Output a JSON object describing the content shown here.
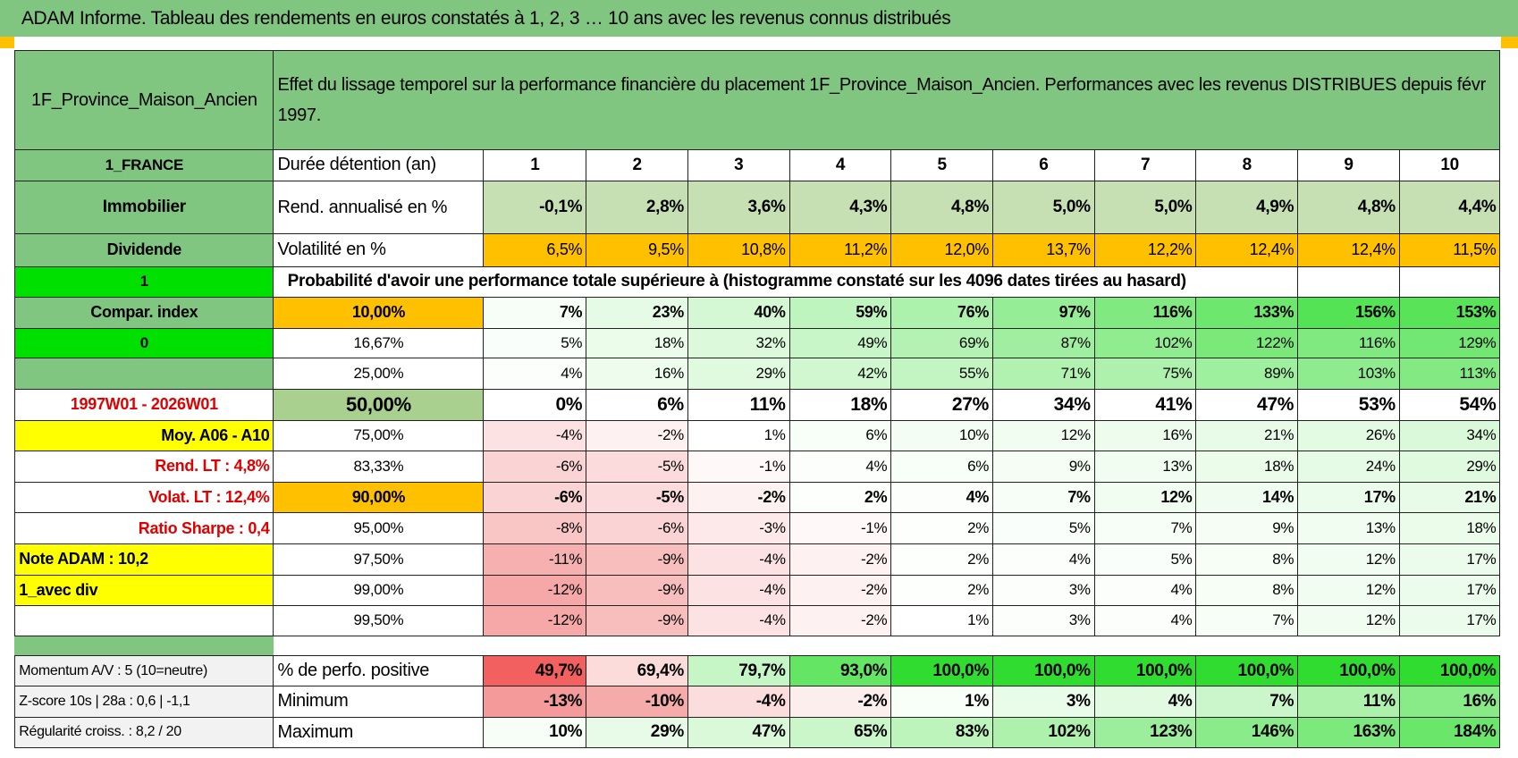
{
  "header": {
    "title": "ADAM Informe. Tableau des rendements en euros constatés à 1, 2, 3 … 10 ans avec les revenus connus distribués"
  },
  "table": {
    "name": "1F_Province_Maison_Ancien",
    "description": "Effet du lissage temporel sur la performance financière du placement 1F_Province_Maison_Ancien. Performances avec les revenus DISTRIBUES depuis févr 1997.",
    "rows": [
      {
        "left": "1_FRANCE",
        "label": "Durée détention (an)",
        "cells": [
          "1",
          "2",
          "3",
          "4",
          "5",
          "6",
          "7",
          "8",
          "9",
          "10"
        ]
      },
      {
        "left": "Immobilier",
        "label": "Rend. annualisé en %",
        "cells": [
          "-0,1%",
          "2,8%",
          "3,6%",
          "4,3%",
          "4,8%",
          "5,0%",
          "5,0%",
          "4,9%",
          "4,8%",
          "4,4%"
        ]
      },
      {
        "left": "Dividende",
        "label": "Volatilité en %",
        "cells": [
          "6,5%",
          "9,5%",
          "10,8%",
          "11,2%",
          "12,0%",
          "13,7%",
          "12,2%",
          "12,4%",
          "12,4%",
          "11,5%"
        ]
      },
      {
        "left": "1",
        "label": "Probabilité d'avoir une performance totale supérieure à (histogramme constaté sur les 4096 dates tirées au hasard)"
      },
      {
        "left": "Compar. index",
        "label": "10,00%",
        "cells": [
          "7%",
          "23%",
          "40%",
          "59%",
          "76%",
          "97%",
          "116%",
          "133%",
          "156%",
          "153%"
        ]
      },
      {
        "left": "0",
        "label": "16,67%",
        "cells": [
          "5%",
          "18%",
          "32%",
          "49%",
          "69%",
          "87%",
          "102%",
          "122%",
          "116%",
          "129%"
        ]
      },
      {
        "label": "25,00%",
        "cells": [
          "4%",
          "16%",
          "29%",
          "42%",
          "55%",
          "71%",
          "75%",
          "89%",
          "103%",
          "113%"
        ]
      },
      {
        "left": "1997W01 - 2026W01",
        "label": "50,00%",
        "cells": [
          "0%",
          "6%",
          "11%",
          "18%",
          "27%",
          "34%",
          "41%",
          "47%",
          "53%",
          "54%"
        ]
      },
      {
        "left": "Moy. A06 - A10",
        "label": "75,00%",
        "cells": [
          "-4%",
          "-2%",
          "1%",
          "6%",
          "10%",
          "12%",
          "16%",
          "21%",
          "26%",
          "34%"
        ]
      },
      {
        "left": "Rend. LT :   4,8%",
        "label": "83,33%",
        "cells": [
          "-6%",
          "-5%",
          "-1%",
          "4%",
          "6%",
          "9%",
          "13%",
          "18%",
          "24%",
          "29%"
        ]
      },
      {
        "left": "Volat. LT :   12,4%",
        "label": "90,00%",
        "cells": [
          "-6%",
          "-5%",
          "-2%",
          "2%",
          "4%",
          "7%",
          "12%",
          "14%",
          "17%",
          "21%"
        ]
      },
      {
        "left": "Ratio Sharpe :    0,4",
        "label": "95,00%",
        "cells": [
          "-8%",
          "-6%",
          "-3%",
          "-1%",
          "2%",
          "5%",
          "7%",
          "9%",
          "13%",
          "18%"
        ]
      },
      {
        "left": "Note ADAM : 10,2",
        "label": "97,50%",
        "cells": [
          "-11%",
          "-9%",
          "-4%",
          "-2%",
          "2%",
          "4%",
          "5%",
          "8%",
          "12%",
          "17%"
        ]
      },
      {
        "left": "1_avec div",
        "label": "99,00%",
        "cells": [
          "-12%",
          "-9%",
          "-4%",
          "-2%",
          "2%",
          "3%",
          "4%",
          "8%",
          "12%",
          "17%"
        ]
      },
      {
        "label": "99,50%",
        "cells": [
          "-12%",
          "-9%",
          "-4%",
          "-2%",
          "1%",
          "3%",
          "4%",
          "7%",
          "12%",
          "17%"
        ]
      }
    ],
    "bottom_rows": [
      {
        "left": "Momentum A/V : 5 (10=neutre)",
        "label": "% de perfo. positive",
        "cells": [
          "49,7%",
          "69,4%",
          "79,7%",
          "93,0%",
          "100,0%",
          "100,0%",
          "100,0%",
          "100,0%",
          "100,0%",
          "100,0%"
        ]
      },
      {
        "left": "Z-score 10s | 28a : 0,6 | -1,1",
        "label": "Minimum",
        "cells": [
          "-13%",
          "-10%",
          "-4%",
          "-2%",
          "1%",
          "3%",
          "4%",
          "7%",
          "11%",
          "16%"
        ]
      },
      {
        "left": "Régularité croiss. : 8,2 / 20",
        "label": "Maximum",
        "cells": [
          "10%",
          "29%",
          "47%",
          "65%",
          "83%",
          "102%",
          "123%",
          "146%",
          "163%",
          "184%"
        ]
      }
    ]
  }
}
